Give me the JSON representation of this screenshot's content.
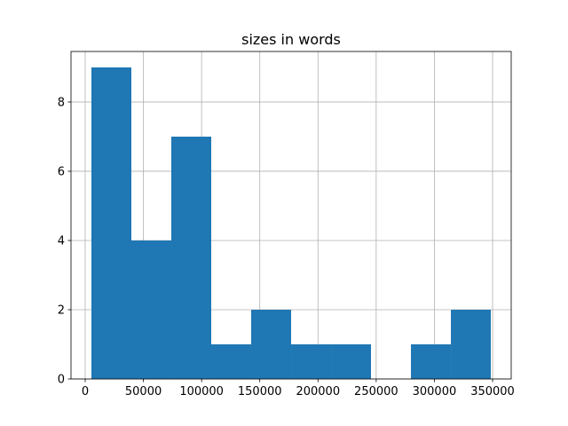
{
  "chart_data": {
    "type": "histogram",
    "title": "sizes in words",
    "bins": [
      5340,
      39650,
      73970,
      108280,
      142600,
      176920,
      211230,
      245550,
      279860,
      314180,
      348500
    ],
    "counts": [
      9,
      4,
      7,
      1,
      2,
      1,
      1,
      0,
      1,
      2
    ],
    "color": "#1f77b4",
    "xlim": [
      -12200,
      366000
    ],
    "xticks": [
      0,
      50000,
      100000,
      150000,
      200000,
      250000,
      300000,
      350000
    ],
    "ylim": [
      0,
      9.46
    ],
    "yticks": [
      0,
      2,
      4,
      6,
      8
    ],
    "grid": true
  }
}
